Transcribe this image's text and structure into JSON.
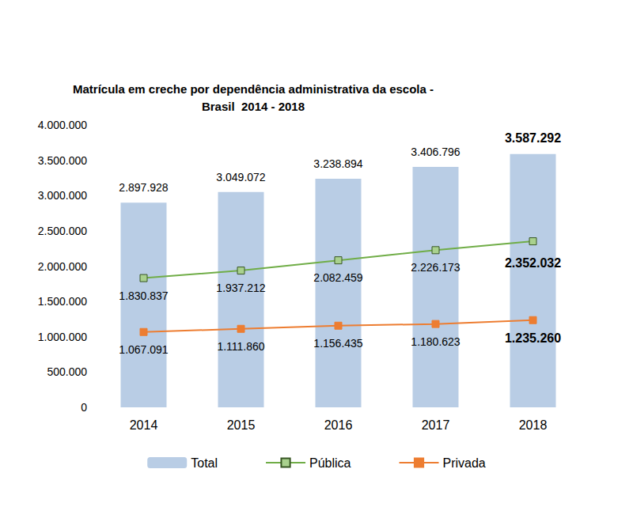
{
  "chart_data": {
    "type": "bar",
    "title": "Matrícula em creche por dependência administrativa da escola -\nBrasil  2014 - 2018",
    "categories": [
      "2014",
      "2015",
      "2016",
      "2017",
      "2018"
    ],
    "series": [
      {
        "name": "Total",
        "type": "bar",
        "color": "#b9cde5",
        "values": [
          2897928,
          3049072,
          3238894,
          3406796,
          3587292
        ],
        "value_labels": [
          "2.897.928",
          "3.049.072",
          "3.238.894",
          "3.406.796",
          "3.587.292"
        ]
      },
      {
        "name": "Pública",
        "type": "line",
        "color": "#70ad47",
        "marker": "square",
        "values": [
          1830837,
          1937212,
          2082459,
          2226173,
          2352032
        ],
        "value_labels": [
          "1.830.837",
          "1.937.212",
          "2.082.459",
          "2.226.173",
          "2.352.032"
        ]
      },
      {
        "name": "Privada",
        "type": "line",
        "color": "#ed7d31",
        "marker": "square",
        "values": [
          1067091,
          1111860,
          1156435,
          1180623,
          1235260
        ],
        "value_labels": [
          "1.067.091",
          "1.111.860",
          "1.156.435",
          "1.180.623",
          "1.235.260"
        ]
      }
    ],
    "ylim": [
      0,
      4000000
    ],
    "yticks": [
      {
        "value": 0,
        "label": "0"
      },
      {
        "value": 500000,
        "label": "500.000"
      },
      {
        "value": 1000000,
        "label": "1.000.000"
      },
      {
        "value": 1500000,
        "label": "1.500.000"
      },
      {
        "value": 2000000,
        "label": "2.000.000"
      },
      {
        "value": 2500000,
        "label": "2.500.000"
      },
      {
        "value": 3000000,
        "label": "3.000.000"
      },
      {
        "value": 3500000,
        "label": "3.500.000"
      },
      {
        "value": 4000000,
        "label": "4.000.000"
      }
    ],
    "grid": false,
    "legend": "bottom",
    "data_labels": true
  }
}
